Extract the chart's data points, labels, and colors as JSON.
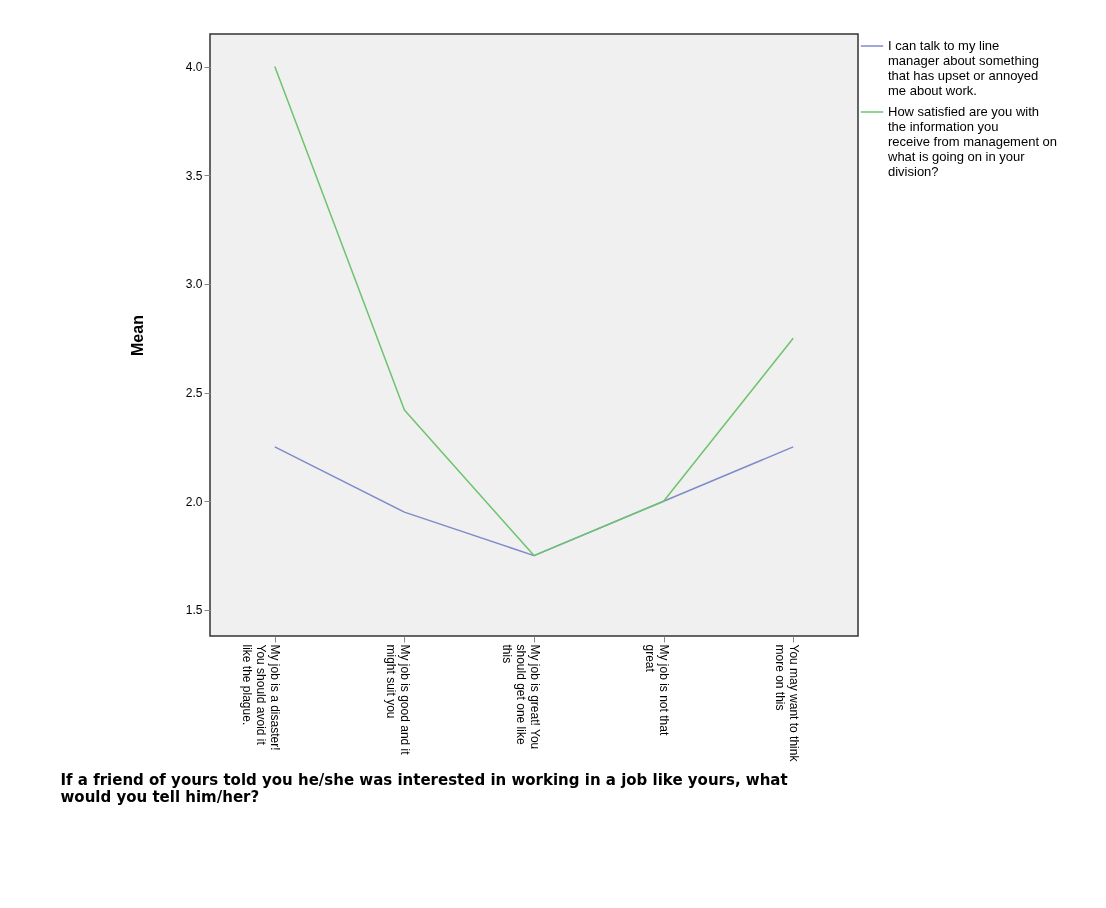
{
  "chart_data": {
    "type": "line",
    "ylabel": "Mean",
    "xlabel": "If a friend of yours told you he/she was interested in working in a job like yours, what would you tell him/her?",
    "categories": [
      "My job is a disaster! You should avoid it like the plague.",
      "My job is good and it might suit you",
      "My job is great! You should get one like this",
      "My job is not that great",
      "You may want to think more on this"
    ],
    "series": [
      {
        "name": "I can talk to my line manager about something that has upset or annoyed me about work.",
        "color": "#7f8bc9",
        "values": [
          2.25,
          1.95,
          1.75,
          2.0,
          2.25
        ]
      },
      {
        "name": "How satisfied are you with the information you receive from management on what is going on in your division?",
        "color": "#6cc46c",
        "values": [
          4.0,
          2.42,
          1.75,
          2.0,
          2.75
        ]
      }
    ],
    "ylim": [
      1.38,
      4.15
    ],
    "yticks": [
      {
        "value": 1.5,
        "label": "1.5"
      },
      {
        "value": 2,
        "label": "2.0"
      },
      {
        "value": 2.5,
        "label": "2.5"
      },
      {
        "value": 3,
        "label": "3.0"
      },
      {
        "value": 3.5,
        "label": "3.5"
      },
      {
        "value": 4,
        "label": "4.0"
      }
    ],
    "grid": false,
    "legend": "top right",
    "marker": "none",
    "line_style": "solid"
  }
}
